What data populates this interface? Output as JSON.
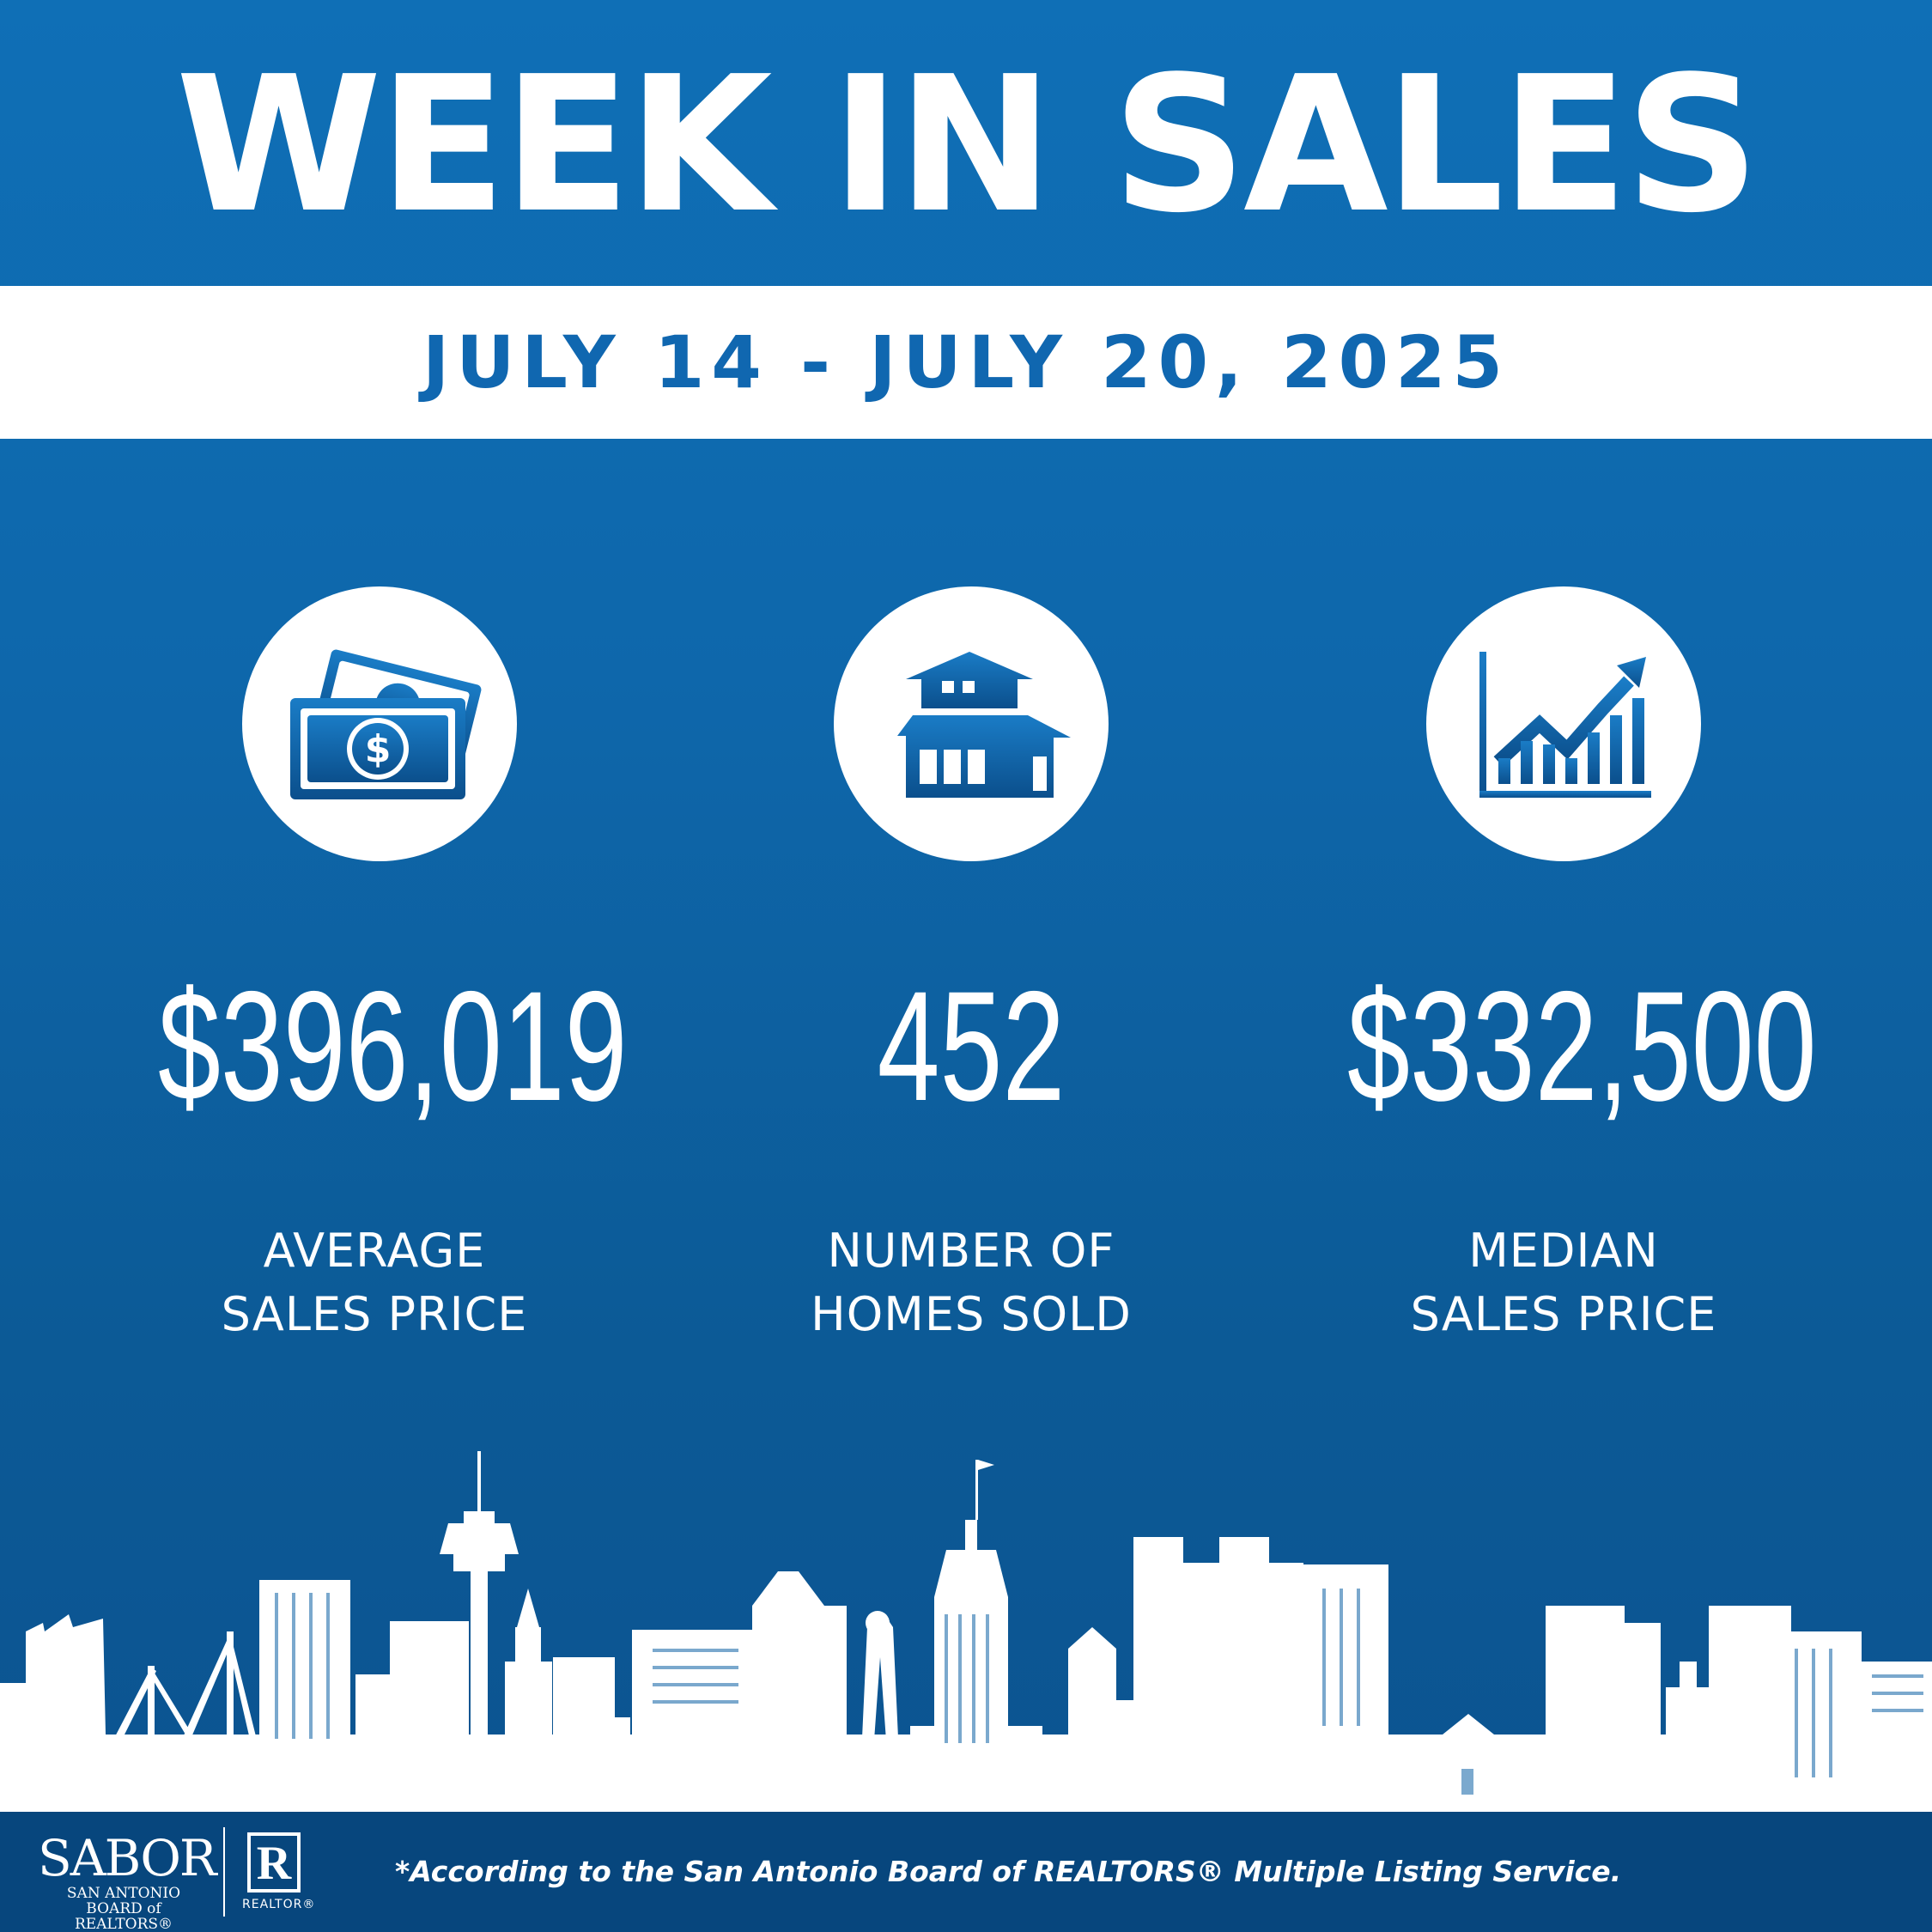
{
  "header": {
    "title": "WEEK IN SALES",
    "date_range": "JULY 14 - JULY 20, 2025"
  },
  "stats": [
    {
      "icon": "money-icon",
      "value": "$396,019",
      "label_line1": "AVERAGE",
      "label_line2": "SALES PRICE"
    },
    {
      "icon": "house-icon",
      "value": "452",
      "label_line1": "NUMBER OF",
      "label_line2": "HOMES SOLD"
    },
    {
      "icon": "growth-chart-icon",
      "value": "$332,500",
      "label_line1": "MEDIAN",
      "label_line2": "SALES PRICE"
    }
  ],
  "footer": {
    "logo_word": "SABOR",
    "logo_line1": "SAN ANTONIO",
    "logo_line2": "BOARD of REALTORS®",
    "realtor_letter": "R",
    "realtor_label": "REALTOR®",
    "footnote": "*According to the San Antonio Board of REALTORS® Multiple Listing Service."
  },
  "colors": {
    "background": "#0f6fb6",
    "accent_text": "#1067b0",
    "footer": "#07467d",
    "white": "#ffffff"
  }
}
